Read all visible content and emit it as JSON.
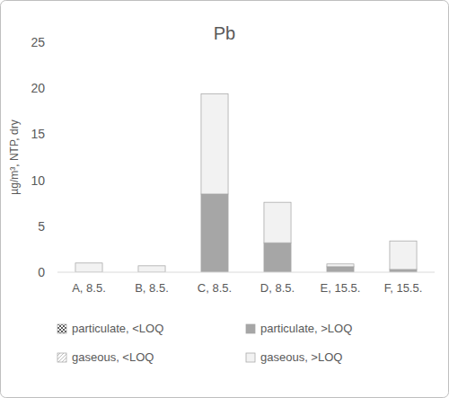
{
  "chart_data": {
    "type": "bar",
    "title": "Pb",
    "y_label": "µg/m³, NTP, dry",
    "categories": [
      "A, 8.5.",
      "B, 8.5.",
      "C, 8.5.",
      "D, 8.5.",
      "E, 15.5.",
      "F, 15.5."
    ],
    "stacked": true,
    "grid": false,
    "legend": "bottom",
    "ylim": [
      0,
      25
    ],
    "yticks": [
      0,
      5,
      10,
      15,
      20,
      25
    ],
    "series": [
      {
        "name": "particulate, <LOQ",
        "color": "#595959",
        "values": [
          0,
          0,
          0,
          0,
          0,
          0
        ]
      },
      {
        "name": "particulate, >LOQ",
        "color": "#a6a6a6",
        "values": [
          0,
          0,
          8.5,
          3.2,
          0.6,
          0.3
        ]
      },
      {
        "name": "gaseous, <LOQ",
        "color": "#bfbfbf",
        "values": [
          0,
          0,
          0,
          0,
          0,
          0
        ]
      },
      {
        "name": "gaseous, >LOQ",
        "color": "#f2f2f2",
        "values": [
          1.0,
          0.7,
          10.9,
          4.4,
          0.3,
          3.1
        ]
      }
    ]
  }
}
